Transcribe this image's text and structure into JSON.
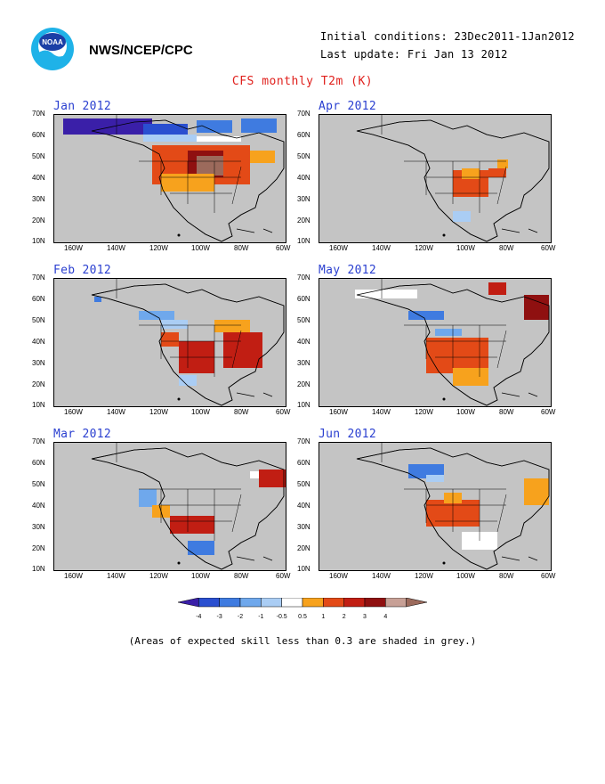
{
  "header": {
    "agency": "NWS/NCEP/CPC",
    "initial_conditions": "Initial conditions: 23Dec2011-1Jan2012",
    "last_update": "Last update: Fri Jan 13 2012",
    "title": "CFS monthly T2m (K)",
    "logo_text": "NOAA"
  },
  "axes": {
    "lat_ticks": [
      "70N",
      "60N",
      "50N",
      "40N",
      "30N",
      "20N",
      "10N"
    ],
    "lon_ticks": [
      "160W",
      "140W",
      "120W",
      "100W",
      "80W",
      "60W"
    ]
  },
  "panels": [
    {
      "label": "Jan 2012"
    },
    {
      "label": "Apr 2012"
    },
    {
      "label": "Feb 2012"
    },
    {
      "label": "May 2012"
    },
    {
      "label": "Mar 2012"
    },
    {
      "label": "Jun 2012"
    }
  ],
  "colorbar": {
    "colors": [
      "#3a1fa8",
      "#2a4fd0",
      "#3f7be0",
      "#6fa8ec",
      "#aacdf4",
      "#ffffff",
      "#f7a21d",
      "#e34a17",
      "#c11e13",
      "#8f1010",
      "#c7a096",
      "#9c6a5c"
    ],
    "labels": [
      "-4",
      "-3",
      "-2",
      "-1",
      "-0.5",
      "0.5",
      "1",
      "2",
      "3",
      "4"
    ]
  },
  "footer": "(Areas of expected skill less than 0.3 are shaded in grey.)"
}
